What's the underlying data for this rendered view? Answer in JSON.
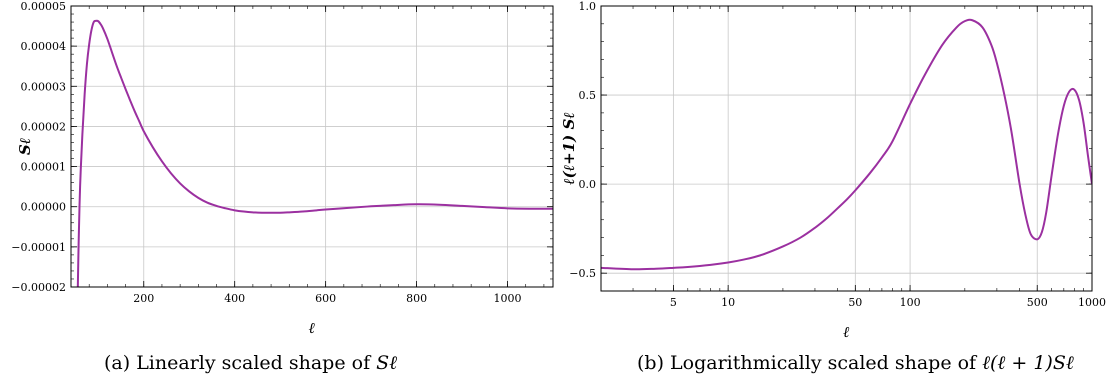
{
  "colors": {
    "curve": "#9b30a0",
    "grid": "#c8c8c8",
    "frame": "#000000"
  },
  "chart_data": [
    {
      "type": "line",
      "title": "",
      "xlabel": "ℓ",
      "ylabel": "Sℓ",
      "xlim": [
        40,
        1100
      ],
      "ylim": [
        -2e-05,
        5e-05
      ],
      "xscale": "linear",
      "grid": true,
      "x_ticks": [
        200,
        400,
        600,
        800,
        1000
      ],
      "x_tick_labels": [
        "200",
        "400",
        "600",
        "800",
        "1000"
      ],
      "y_ticks": [
        -2e-05,
        -1e-05,
        0,
        1e-05,
        2e-05,
        3e-05,
        4e-05,
        5e-05
      ],
      "y_tick_labels": [
        "−0.00002",
        "−0.00001",
        "0.00000",
        "0.00001",
        "0.00002",
        "0.00003",
        "0.00004",
        "0.00005"
      ],
      "series": [
        {
          "x": [
            55,
            57,
            60,
            65,
            70,
            75,
            80,
            85,
            90,
            95,
            100,
            105,
            110,
            120,
            130,
            140,
            150,
            160,
            170,
            180,
            190,
            200,
            220,
            240,
            260,
            280,
            300,
            320,
            340,
            360,
            380,
            400,
            420,
            440,
            460,
            480,
            500,
            520,
            550,
            580,
            600,
            650,
            700,
            750,
            800,
            850,
            900,
            950,
            1000,
            1050,
            1100
          ],
          "y": [
            -2e-05,
            -8e-06,
            5e-06,
            1.8e-05,
            2.8e-05,
            3.55e-05,
            4.05e-05,
            4.4e-05,
            4.6e-05,
            4.63e-05,
            4.62e-05,
            4.55e-05,
            4.45e-05,
            4.18e-05,
            3.85e-05,
            3.52e-05,
            3.22e-05,
            2.93e-05,
            2.65e-05,
            2.38e-05,
            2.13e-05,
            1.88e-05,
            1.48e-05,
            1.13e-05,
            8.3e-06,
            5.8e-06,
            3.8e-06,
            2.2e-06,
            1e-06,
            2e-07,
            -4e-07,
            -9e-07,
            -1.2e-06,
            -1.4e-06,
            -1.5e-06,
            -1.5e-06,
            -1.5e-06,
            -1.4e-06,
            -1.2e-06,
            -9e-07,
            -7e-07,
            -3e-07,
            1e-07,
            4e-07,
            6e-07,
            5e-07,
            2e-07,
            -1e-07,
            -4e-07,
            -5e-07,
            -5e-07
          ]
        }
      ]
    },
    {
      "type": "line",
      "title": "",
      "xlabel": "ℓ",
      "ylabel": "ℓ(ℓ+1) Sℓ",
      "xlim": [
        2,
        1000
      ],
      "ylim": [
        -0.6,
        1.0
      ],
      "xscale": "log",
      "grid": true,
      "x_ticks": [
        5,
        10,
        50,
        100,
        500,
        1000
      ],
      "x_tick_labels": [
        "5",
        "10",
        "50",
        "100",
        "500",
        "1000"
      ],
      "y_ticks": [
        -0.5,
        0,
        0.5,
        1
      ],
      "y_tick_labels": [
        "−0.5",
        "0.0",
        "0.5",
        "1.0"
      ],
      "series": [
        {
          "x": [
            2,
            3,
            4,
            5,
            6,
            8,
            10,
            12,
            15,
            20,
            25,
            30,
            35,
            40,
            45,
            50,
            60,
            70,
            80,
            100,
            120,
            150,
            180,
            200,
            220,
            250,
            280,
            300,
            330,
            360,
            400,
            430,
            460,
            500,
            530,
            560,
            600,
            650,
            700,
            750,
            800,
            850,
            900,
            950,
            1000
          ],
          "y": [
            -0.47,
            -0.478,
            -0.475,
            -0.47,
            -0.465,
            -0.453,
            -0.44,
            -0.425,
            -0.4,
            -0.35,
            -0.3,
            -0.245,
            -0.19,
            -0.135,
            -0.085,
            -0.035,
            0.06,
            0.15,
            0.24,
            0.45,
            0.61,
            0.78,
            0.88,
            0.915,
            0.92,
            0.88,
            0.78,
            0.68,
            0.5,
            0.3,
            0.0,
            -0.17,
            -0.28,
            -0.31,
            -0.27,
            -0.16,
            0.05,
            0.28,
            0.44,
            0.52,
            0.53,
            0.47,
            0.34,
            0.16,
            0.0
          ]
        }
      ]
    }
  ],
  "captions": [
    {
      "prefix": "(a) Linearly scaled shape of ",
      "math": "Sℓ"
    },
    {
      "prefix": "(b) Logarithmically scaled shape of ",
      "math": "ℓ(ℓ + 1)Sℓ"
    }
  ]
}
